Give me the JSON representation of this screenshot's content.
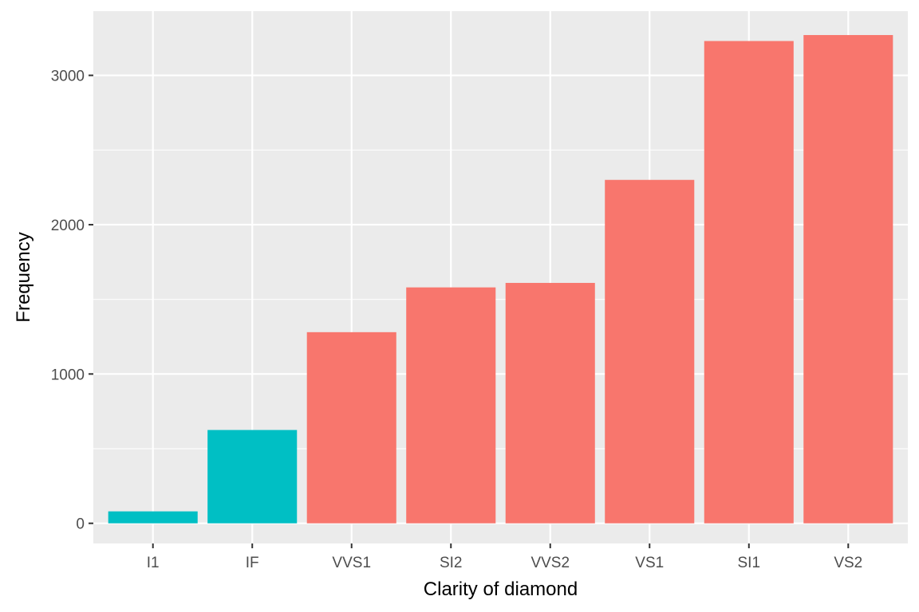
{
  "chart_data": {
    "type": "bar",
    "title": "",
    "xlabel": "Clarity of diamond",
    "ylabel": "Frequency",
    "categories": [
      "I1",
      "IF",
      "VVS1",
      "SI2",
      "VVS2",
      "VS1",
      "SI1",
      "VS2"
    ],
    "values": [
      80,
      625,
      1280,
      1580,
      1610,
      2300,
      3230,
      3270
    ],
    "groups": [
      "teal",
      "teal",
      "salmon",
      "salmon",
      "salmon",
      "salmon",
      "salmon",
      "salmon"
    ],
    "ylim": [
      -135,
      3430
    ],
    "yticks": [
      0,
      1000,
      2000,
      3000
    ],
    "ytick_labels": [
      "0",
      "1000",
      "2000",
      "3000"
    ],
    "grid": true,
    "legend": "none",
    "colors": {
      "salmon": "#F8766D",
      "teal": "#00BFC4",
      "panel": "#EBEBEB",
      "grid_major": "#FFFFFF",
      "tick_text": "#4D4D4D",
      "tick_mark": "#333333"
    }
  }
}
